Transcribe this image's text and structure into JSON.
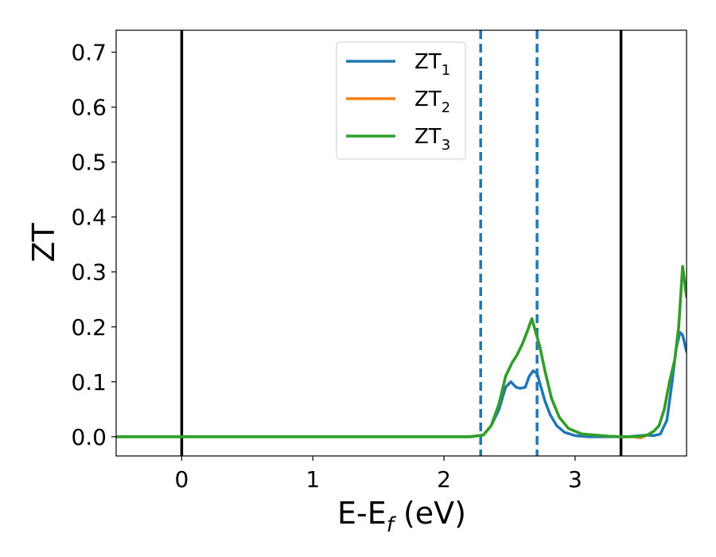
{
  "chart_data": {
    "type": "line",
    "title": "",
    "xlabel": "E-E",
    "xlabel_sub": "f",
    "xlabel_unit": " (eV)",
    "ylabel": "ZT",
    "xlim": [
      -0.5,
      3.85
    ],
    "ylim": [
      -0.035,
      0.74
    ],
    "xticks": [
      0,
      1,
      2,
      3
    ],
    "xtick_labels": [
      "0",
      "1",
      "2",
      "3"
    ],
    "yticks": [
      0.0,
      0.1,
      0.2,
      0.3,
      0.4,
      0.5,
      0.6,
      0.7
    ],
    "ytick_labels": [
      "0.0",
      "0.1",
      "0.2",
      "0.3",
      "0.4",
      "0.5",
      "0.6",
      "0.7"
    ],
    "grid": false,
    "legend_position": "top-center",
    "vlines": [
      {
        "x": 0.0,
        "style": "solid",
        "color": "#000000"
      },
      {
        "x": 3.35,
        "style": "solid",
        "color": "#000000"
      },
      {
        "x": 2.28,
        "style": "dashed",
        "color": "#1f77b4"
      },
      {
        "x": 2.71,
        "style": "dashed",
        "color": "#1f77b4"
      }
    ],
    "series": [
      {
        "name": "ZT",
        "name_sub": "1",
        "color": "#1f77b4",
        "x": [
          -0.5,
          2.2,
          2.3,
          2.36,
          2.42,
          2.47,
          2.51,
          2.55,
          2.58,
          2.62,
          2.65,
          2.68,
          2.71,
          2.74,
          2.77,
          2.81,
          2.86,
          2.92,
          3.0,
          3.1,
          3.2,
          3.3,
          3.4,
          3.5,
          3.55,
          3.6,
          3.65,
          3.7,
          3.74,
          3.77,
          3.8,
          3.82,
          3.85
        ],
        "y": [
          0.0,
          0.0,
          0.003,
          0.02,
          0.05,
          0.09,
          0.1,
          0.09,
          0.088,
          0.09,
          0.11,
          0.12,
          0.115,
          0.09,
          0.065,
          0.04,
          0.02,
          0.008,
          0.002,
          0.0,
          0.0,
          0.0,
          0.0,
          0.002,
          0.003,
          0.002,
          0.005,
          0.03,
          0.1,
          0.16,
          0.19,
          0.185,
          0.155
        ]
      },
      {
        "name": "ZT",
        "name_sub": "2",
        "color": "#ff7f0e",
        "x": [
          -0.5,
          2.2,
          2.3,
          2.36,
          2.42,
          2.47,
          2.52,
          2.56,
          2.6,
          2.64,
          2.67,
          2.7,
          2.73,
          2.77,
          2.82,
          2.88,
          2.95,
          3.05,
          3.15,
          3.25,
          3.35,
          3.45,
          3.5,
          3.55,
          3.6,
          3.64,
          3.68,
          3.72,
          3.76,
          3.79,
          3.82,
          3.85
        ],
        "y": [
          0.0,
          0.0,
          0.003,
          0.02,
          0.06,
          0.11,
          0.135,
          0.15,
          0.17,
          0.195,
          0.215,
          0.19,
          0.165,
          0.12,
          0.07,
          0.035,
          0.015,
          0.005,
          0.003,
          0.001,
          0.0,
          0.0,
          -0.002,
          0.003,
          0.01,
          0.02,
          0.05,
          0.1,
          0.14,
          0.2,
          0.31,
          0.255
        ]
      },
      {
        "name": "ZT",
        "name_sub": "3",
        "color": "#2ca02c",
        "x": [
          -0.5,
          2.2,
          2.3,
          2.36,
          2.42,
          2.47,
          2.52,
          2.56,
          2.6,
          2.64,
          2.67,
          2.7,
          2.73,
          2.77,
          2.82,
          2.88,
          2.95,
          3.05,
          3.15,
          3.25,
          3.35,
          3.45,
          3.5,
          3.55,
          3.6,
          3.64,
          3.68,
          3.72,
          3.76,
          3.79,
          3.82,
          3.85
        ],
        "y": [
          0.0,
          0.0,
          0.003,
          0.02,
          0.06,
          0.11,
          0.135,
          0.15,
          0.17,
          0.195,
          0.215,
          0.19,
          0.165,
          0.12,
          0.07,
          0.035,
          0.015,
          0.005,
          0.003,
          0.001,
          0.0,
          0.0,
          0.001,
          0.003,
          0.01,
          0.02,
          0.05,
          0.1,
          0.14,
          0.2,
          0.31,
          0.255
        ]
      }
    ]
  }
}
